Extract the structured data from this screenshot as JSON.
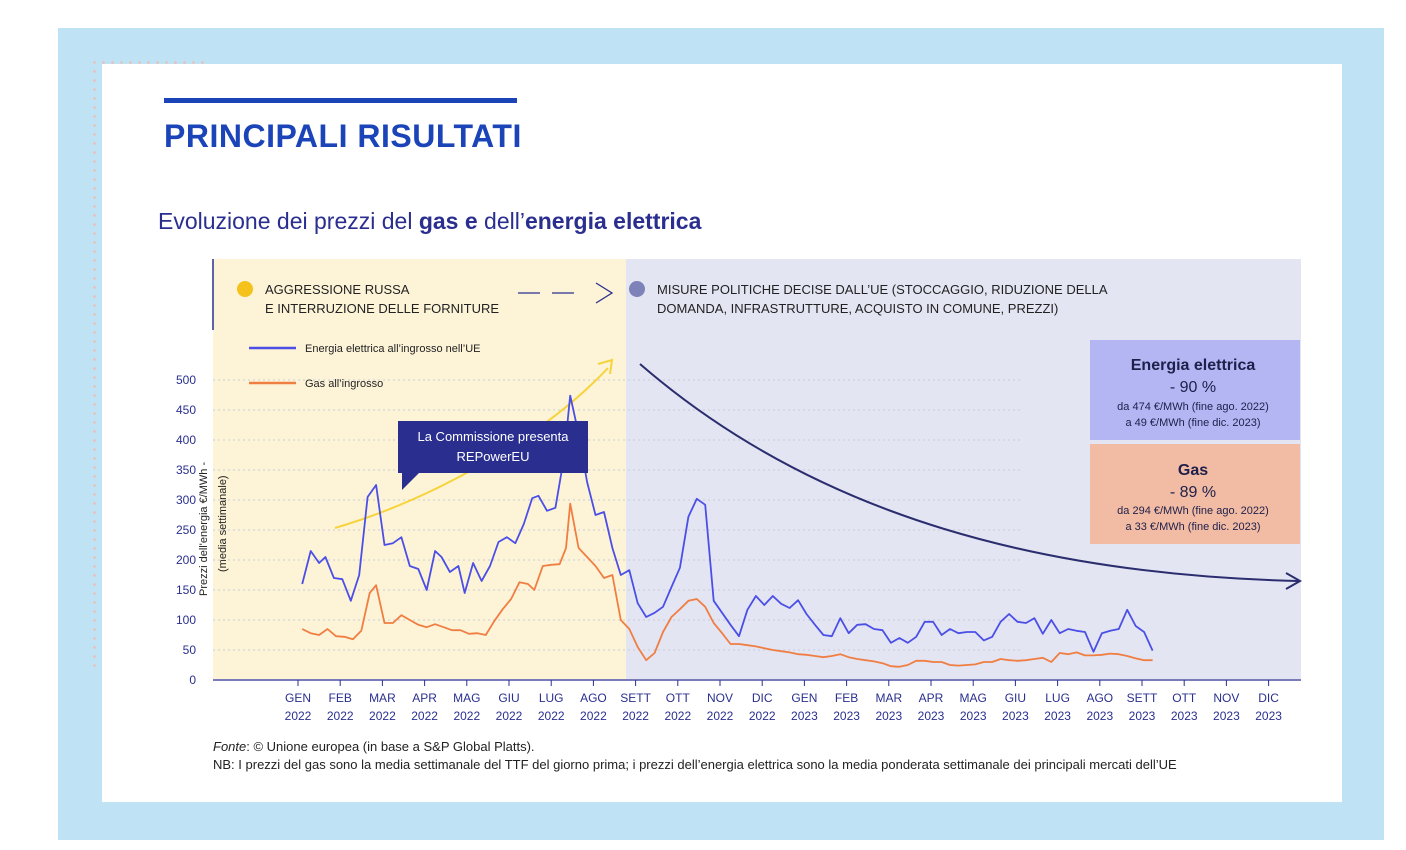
{
  "header": {
    "section_title": "PRINCIPALI RISULTATI",
    "chart_title_parts": [
      "Evoluzione dei prezzi del ",
      "gas e",
      " dell’",
      "energia elettrica"
    ]
  },
  "phases": {
    "left_line1": "AGGRESSIONE RUSSA",
    "left_line2": "E INTERRUZIONE DELLE FORNITURE",
    "right_line1": "MISURE POLITICHE DECISE DALL’UE (STOCCAGGIO, RIDUZIONE DELLA",
    "right_line2": "DOMANDA, INFRASTRUTTURE, ACQUISTO IN COMUNE, PREZZI)",
    "colors": {
      "left_bg": "#fdf4d8",
      "right_bg": "#e3e5f3",
      "left_dot": "#f5c21b",
      "right_dot": "#7d82b8"
    }
  },
  "annotation": {
    "line1": "La Commissione presenta",
    "line2": "REPowerEU"
  },
  "boxes": {
    "electricity": {
      "title": "Energia elettrica",
      "change": "- 90 %",
      "line1": "da 474 €/MWh (fine ago. 2022)",
      "line2": "a 49 €/MWh (fine dic. 2023)",
      "color": "#b3b6f3"
    },
    "gas": {
      "title": "Gas",
      "change": "- 89 %",
      "line1": "da 294 €/MWh (fine ago. 2022)",
      "line2": "a 33 €/MWh (fine dic. 2023)",
      "color": "#f2bca4"
    }
  },
  "footer": {
    "source_label": "Fonte",
    "source_text": ": © Unione europea (in base a S&P Global Platts).",
    "note": "NB: I prezzi del gas sono la media settimanale del TTF del giorno prima; i prezzi dell’energia elettrica sono la media ponderata settimanale dei principali mercati dell’UE"
  },
  "chart_data": {
    "type": "line",
    "ylabel_line1": "Prezzi dell'energia €/MWh -",
    "ylabel_line2": "(media settimanale)",
    "ylim": [
      0,
      500
    ],
    "yticks": [
      0,
      50,
      100,
      150,
      200,
      250,
      300,
      350,
      400,
      450,
      500
    ],
    "xticks": [
      [
        "GEN",
        "2022"
      ],
      [
        "FEB",
        "2022"
      ],
      [
        "MAR",
        "2022"
      ],
      [
        "APR",
        "2022"
      ],
      [
        "MAG",
        "2022"
      ],
      [
        "GIU",
        "2022"
      ],
      [
        "LUG",
        "2022"
      ],
      [
        "AGO",
        "2022"
      ],
      [
        "SETT",
        "2022"
      ],
      [
        "OTT",
        "2022"
      ],
      [
        "NOV",
        "2022"
      ],
      [
        "DIC",
        "2022"
      ],
      [
        "GEN",
        "2023"
      ],
      [
        "FEB",
        "2023"
      ],
      [
        "MAR",
        "2023"
      ],
      [
        "APR",
        "2023"
      ],
      [
        "MAG",
        "2023"
      ],
      [
        "GIU",
        "2023"
      ],
      [
        "LUG",
        "2023"
      ],
      [
        "AGO",
        "2023"
      ],
      [
        "SETT",
        "2023"
      ],
      [
        "OTT",
        "2023"
      ],
      [
        "NOV",
        "2023"
      ],
      [
        "DIC",
        "2023"
      ]
    ],
    "legend": "top-left",
    "grid": "dotted horizontal",
    "series": [
      {
        "name": "Energia elettrica all’ingrosso nell’UE",
        "color": "#4b4fe6",
        "values": [
          [
            0.1,
            160
          ],
          [
            0.3,
            215
          ],
          [
            0.5,
            195
          ],
          [
            0.65,
            205
          ],
          [
            0.85,
            170
          ],
          [
            1.05,
            168
          ],
          [
            1.25,
            132
          ],
          [
            1.45,
            175
          ],
          [
            1.65,
            305
          ],
          [
            1.85,
            325
          ],
          [
            2.05,
            225
          ],
          [
            2.25,
            228
          ],
          [
            2.45,
            238
          ],
          [
            2.65,
            190
          ],
          [
            2.85,
            185
          ],
          [
            3.05,
            150
          ],
          [
            3.25,
            215
          ],
          [
            3.4,
            205
          ],
          [
            3.6,
            180
          ],
          [
            3.8,
            190
          ],
          [
            3.95,
            145
          ],
          [
            4.15,
            195
          ],
          [
            4.35,
            165
          ],
          [
            4.55,
            190
          ],
          [
            4.75,
            230
          ],
          [
            4.95,
            238
          ],
          [
            5.15,
            228
          ],
          [
            5.35,
            260
          ],
          [
            5.55,
            303
          ],
          [
            5.7,
            307
          ],
          [
            5.9,
            282
          ],
          [
            6.1,
            287
          ],
          [
            6.3,
            370
          ],
          [
            6.45,
            474
          ],
          [
            6.65,
            410
          ],
          [
            6.85,
            330
          ],
          [
            7.05,
            275
          ],
          [
            7.25,
            280
          ],
          [
            7.45,
            220
          ],
          [
            7.65,
            175
          ],
          [
            7.85,
            183
          ],
          [
            8.05,
            128
          ],
          [
            8.25,
            105
          ],
          [
            8.45,
            112
          ],
          [
            8.65,
            122
          ],
          [
            8.85,
            155
          ],
          [
            9.05,
            187
          ],
          [
            9.25,
            272
          ],
          [
            9.45,
            302
          ],
          [
            9.65,
            292
          ],
          [
            9.85,
            132
          ],
          [
            10.05,
            112
          ],
          [
            10.25,
            92
          ],
          [
            10.45,
            73
          ],
          [
            10.65,
            117
          ],
          [
            10.85,
            140
          ],
          [
            11.05,
            125
          ],
          [
            11.25,
            140
          ],
          [
            11.45,
            127
          ],
          [
            11.65,
            120
          ],
          [
            11.85,
            133
          ],
          [
            12.05,
            110
          ],
          [
            12.25,
            92
          ],
          [
            12.45,
            75
          ],
          [
            12.65,
            73
          ],
          [
            12.85,
            103
          ],
          [
            13.05,
            78
          ],
          [
            13.25,
            92
          ],
          [
            13.45,
            93
          ],
          [
            13.65,
            85
          ],
          [
            13.85,
            83
          ],
          [
            14.05,
            62
          ],
          [
            14.25,
            70
          ],
          [
            14.45,
            62
          ],
          [
            14.65,
            72
          ],
          [
            14.85,
            97
          ],
          [
            15.05,
            97
          ],
          [
            15.25,
            75
          ],
          [
            15.45,
            85
          ],
          [
            15.65,
            78
          ],
          [
            15.85,
            80
          ],
          [
            16.05,
            80
          ],
          [
            16.25,
            66
          ],
          [
            16.45,
            72
          ],
          [
            16.65,
            97
          ],
          [
            16.85,
            110
          ],
          [
            17.05,
            97
          ],
          [
            17.25,
            95
          ],
          [
            17.45,
            103
          ],
          [
            17.65,
            77
          ],
          [
            17.85,
            100
          ],
          [
            18.05,
            78
          ],
          [
            18.25,
            85
          ],
          [
            18.45,
            82
          ],
          [
            18.65,
            80
          ],
          [
            18.85,
            47
          ],
          [
            19.05,
            78
          ],
          [
            19.25,
            82
          ],
          [
            19.45,
            85
          ],
          [
            19.65,
            117
          ],
          [
            19.85,
            90
          ],
          [
            20.05,
            80
          ],
          [
            20.25,
            49
          ]
        ]
      },
      {
        "name": "Gas all’ingrosso",
        "color": "#f07e43",
        "values": [
          [
            0.1,
            85
          ],
          [
            0.3,
            78
          ],
          [
            0.5,
            75
          ],
          [
            0.7,
            85
          ],
          [
            0.9,
            73
          ],
          [
            1.1,
            72
          ],
          [
            1.3,
            68
          ],
          [
            1.5,
            82
          ],
          [
            1.7,
            145
          ],
          [
            1.85,
            158
          ],
          [
            2.05,
            95
          ],
          [
            2.25,
            95
          ],
          [
            2.45,
            108
          ],
          [
            2.65,
            100
          ],
          [
            2.85,
            92
          ],
          [
            3.05,
            88
          ],
          [
            3.25,
            93
          ],
          [
            3.45,
            88
          ],
          [
            3.65,
            83
          ],
          [
            3.85,
            83
          ],
          [
            4.05,
            77
          ],
          [
            4.25,
            78
          ],
          [
            4.45,
            75
          ],
          [
            4.65,
            98
          ],
          [
            4.85,
            118
          ],
          [
            5.05,
            135
          ],
          [
            5.25,
            163
          ],
          [
            5.45,
            160
          ],
          [
            5.6,
            150
          ],
          [
            5.8,
            190
          ],
          [
            6.0,
            192
          ],
          [
            6.2,
            193
          ],
          [
            6.35,
            220
          ],
          [
            6.45,
            294
          ],
          [
            6.65,
            220
          ],
          [
            6.85,
            205
          ],
          [
            7.05,
            190
          ],
          [
            7.25,
            170
          ],
          [
            7.45,
            175
          ],
          [
            7.65,
            100
          ],
          [
            7.85,
            85
          ],
          [
            8.05,
            55
          ],
          [
            8.25,
            33
          ],
          [
            8.45,
            45
          ],
          [
            8.65,
            80
          ],
          [
            8.85,
            105
          ],
          [
            9.05,
            118
          ],
          [
            9.25,
            132
          ],
          [
            9.45,
            135
          ],
          [
            9.65,
            122
          ],
          [
            9.85,
            95
          ],
          [
            10.05,
            78
          ],
          [
            10.25,
            60
          ],
          [
            10.45,
            60
          ],
          [
            10.65,
            58
          ],
          [
            10.85,
            56
          ],
          [
            11.05,
            53
          ],
          [
            11.25,
            50
          ],
          [
            11.45,
            48
          ],
          [
            11.65,
            46
          ],
          [
            11.85,
            43
          ],
          [
            12.05,
            42
          ],
          [
            12.25,
            40
          ],
          [
            12.45,
            38
          ],
          [
            12.65,
            40
          ],
          [
            12.85,
            43
          ],
          [
            13.05,
            38
          ],
          [
            13.25,
            35
          ],
          [
            13.45,
            33
          ],
          [
            13.65,
            31
          ],
          [
            13.85,
            28
          ],
          [
            14.05,
            23
          ],
          [
            14.25,
            22
          ],
          [
            14.45,
            25
          ],
          [
            14.65,
            32
          ],
          [
            14.85,
            32
          ],
          [
            15.05,
            30
          ],
          [
            15.25,
            30
          ],
          [
            15.45,
            25
          ],
          [
            15.65,
            24
          ],
          [
            15.85,
            25
          ],
          [
            16.05,
            26
          ],
          [
            16.25,
            30
          ],
          [
            16.45,
            30
          ],
          [
            16.65,
            35
          ],
          [
            16.85,
            33
          ],
          [
            17.05,
            32
          ],
          [
            17.25,
            33
          ],
          [
            17.45,
            35
          ],
          [
            17.65,
            37
          ],
          [
            17.85,
            30
          ],
          [
            18.05,
            45
          ],
          [
            18.25,
            43
          ],
          [
            18.45,
            46
          ],
          [
            18.65,
            41
          ],
          [
            18.85,
            41
          ],
          [
            19.05,
            42
          ],
          [
            19.25,
            44
          ],
          [
            19.45,
            43
          ],
          [
            19.65,
            40
          ],
          [
            19.85,
            36
          ],
          [
            20.05,
            33
          ],
          [
            20.25,
            33
          ]
        ]
      }
    ]
  }
}
